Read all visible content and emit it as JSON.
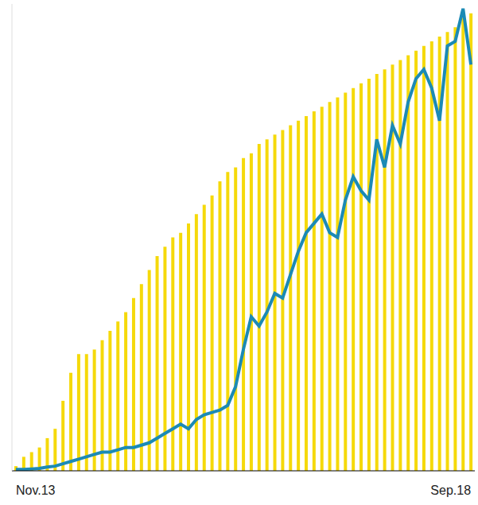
{
  "chart_data": {
    "type": "bar",
    "categories": [
      "Nov.13",
      null,
      null,
      null,
      null,
      null,
      null,
      null,
      null,
      null,
      null,
      null,
      null,
      null,
      null,
      null,
      null,
      null,
      null,
      null,
      null,
      null,
      null,
      null,
      null,
      null,
      null,
      null,
      null,
      null,
      null,
      null,
      null,
      null,
      null,
      null,
      null,
      null,
      null,
      null,
      null,
      null,
      null,
      null,
      null,
      null,
      null,
      null,
      null,
      null,
      null,
      null,
      null,
      null,
      null,
      null,
      null,
      null,
      "Sep.18"
    ],
    "series": [
      {
        "type": "bar",
        "color": "#f5d90a",
        "values": [
          1,
          3,
          4,
          5,
          7,
          9,
          15,
          21,
          25,
          25,
          26,
          28,
          30,
          32,
          34,
          37,
          40,
          43,
          46,
          48,
          50,
          51,
          53,
          55,
          57,
          59,
          62,
          64,
          65,
          67,
          68,
          70,
          71,
          72,
          73,
          74,
          75,
          76,
          77,
          78,
          79,
          80,
          81,
          82,
          83,
          84,
          85,
          86,
          87,
          88,
          89,
          90,
          91,
          92,
          93,
          94,
          95,
          97,
          98
        ]
      },
      {
        "type": "line",
        "color": "#1b8ab5",
        "values": [
          0.3,
          0.3,
          0.4,
          0.5,
          0.8,
          1,
          1.5,
          2,
          2.5,
          3,
          3.5,
          4,
          4,
          4.5,
          5,
          5,
          5.5,
          6,
          7,
          8,
          9,
          10,
          9,
          11,
          12,
          12.5,
          13,
          14,
          18,
          26,
          33,
          31,
          34,
          38,
          37,
          42,
          47,
          51,
          53,
          55,
          51,
          50,
          58,
          63,
          60,
          58,
          71,
          65,
          74,
          70,
          79,
          84,
          86,
          82,
          75,
          91,
          92,
          99,
          87
        ]
      }
    ],
    "ylim": [
      0,
      100
    ],
    "yticks": [],
    "tick_labels": "x",
    "grid": false
  }
}
